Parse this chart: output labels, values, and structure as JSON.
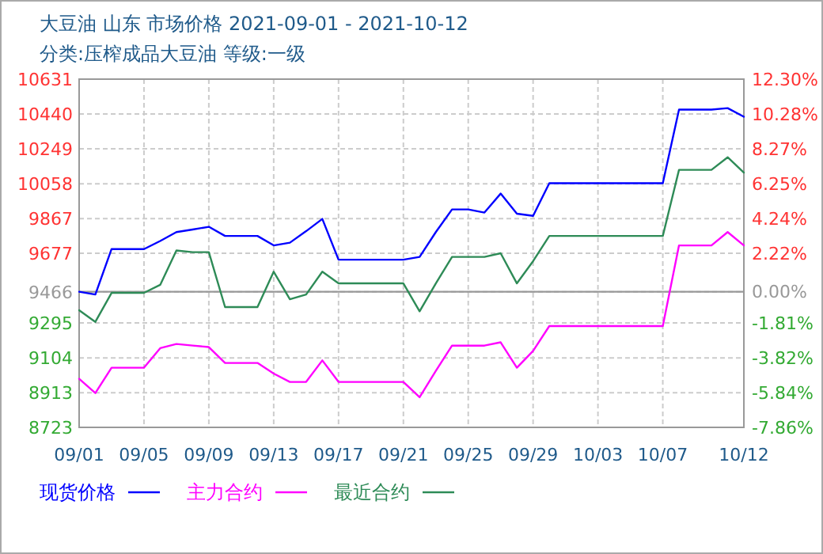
{
  "chart_data": {
    "type": "line",
    "title": "大豆油  山东  市场价格  2021-09-01 - 2021-10-12",
    "subtitle": "分类:压榨成品大豆油  等级:一级",
    "x": [
      "2021-09-01",
      "2021-09-02",
      "2021-09-03",
      "2021-09-04",
      "2021-09-05",
      "2021-09-06",
      "2021-09-07",
      "2021-09-08",
      "2021-09-09",
      "2021-09-10",
      "2021-09-11",
      "2021-09-12",
      "2021-09-13",
      "2021-09-14",
      "2021-09-15",
      "2021-09-16",
      "2021-09-17",
      "2021-09-18",
      "2021-09-19",
      "2021-09-20",
      "2021-09-21",
      "2021-09-22",
      "2021-09-23",
      "2021-09-24",
      "2021-09-25",
      "2021-09-26",
      "2021-09-27",
      "2021-09-28",
      "2021-09-29",
      "2021-09-30",
      "2021-10-01",
      "2021-10-02",
      "2021-10-03",
      "2021-10-04",
      "2021-10-05",
      "2021-10-06",
      "2021-10-07",
      "2021-10-08",
      "2021-10-09",
      "2021-10-10",
      "2021-10-11",
      "2021-10-12"
    ],
    "series": [
      {
        "name": "现货价格",
        "color": "#0000ff",
        "values": [
          9466,
          9451,
          9700,
          9700,
          9700,
          9744,
          9793,
          9807,
          9822,
          9772,
          9772,
          9772,
          9720,
          9735,
          9798,
          9865,
          9642,
          9642,
          9642,
          9642,
          9642,
          9657,
          9793,
          9917,
          9917,
          9900,
          10004,
          9894,
          9882,
          10061,
          10061,
          10061,
          10061,
          10061,
          10061,
          10061,
          10061,
          10464,
          10464,
          10464,
          10472,
          10425
        ]
      },
      {
        "name": "主力合约",
        "color": "#ff00ff",
        "values": [
          8989,
          8911,
          9050,
          9050,
          9050,
          9157,
          9180,
          9171,
          9163,
          9076,
          9076,
          9076,
          9018,
          8972,
          8972,
          9090,
          8972,
          8972,
          8972,
          8972,
          8972,
          8888,
          9032,
          9171,
          9171,
          9171,
          9189,
          9050,
          9142,
          9278,
          9278,
          9278,
          9278,
          9278,
          9278,
          9278,
          9278,
          9720,
          9720,
          9720,
          9793,
          9720
        ]
      },
      {
        "name": "最近合约",
        "color": "#2e8b57",
        "values": [
          9365,
          9301,
          9460,
          9460,
          9460,
          9504,
          9692,
          9683,
          9683,
          9382,
          9382,
          9382,
          9576,
          9425,
          9451,
          9576,
          9512,
          9512,
          9512,
          9512,
          9512,
          9359,
          9512,
          9657,
          9657,
          9657,
          9677,
          9512,
          9634,
          9772,
          9772,
          9772,
          9772,
          9772,
          9772,
          9772,
          9772,
          10134,
          10134,
          10134,
          10203,
          10119
        ]
      }
    ],
    "xlim": [
      "2021-09-01",
      "2021-10-12"
    ],
    "xticks": [
      {
        "value": "2021-09-01",
        "label": "09/01"
      },
      {
        "value": "2021-09-05",
        "label": "09/05"
      },
      {
        "value": "2021-09-09",
        "label": "09/09"
      },
      {
        "value": "2021-09-13",
        "label": "09/13"
      },
      {
        "value": "2021-09-17",
        "label": "09/17"
      },
      {
        "value": "2021-09-21",
        "label": "09/21"
      },
      {
        "value": "2021-09-25",
        "label": "09/25"
      },
      {
        "value": "2021-09-29",
        "label": "09/29"
      },
      {
        "value": "2021-10-03",
        "label": "10/03"
      },
      {
        "value": "2021-10-07",
        "label": "10/07"
      },
      {
        "value": "2021-10-12",
        "label": "10/12"
      }
    ],
    "ylim": [
      8723,
      10631
    ],
    "yticks": [
      8723,
      8913,
      9104,
      9295,
      9466,
      9677,
      9867,
      10058,
      10249,
      10440,
      10631
    ],
    "y2lim": [
      -7.86,
      12.3
    ],
    "y2ticks": [
      {
        "value": -7.86,
        "label": "-7.86%"
      },
      {
        "value": -5.84,
        "label": "-5.84%"
      },
      {
        "value": -3.82,
        "label": "-3.82%"
      },
      {
        "value": -1.81,
        "label": "-1.81%"
      },
      {
        "value": 0,
        "label": "0.00%"
      },
      {
        "value": 2.22,
        "label": "2.22%"
      },
      {
        "value": 4.24,
        "label": "4.24%"
      },
      {
        "value": 6.25,
        "label": "6.25%"
      },
      {
        "value": 8.27,
        "label": "8.27%"
      },
      {
        "value": 10.28,
        "label": "10.28%"
      },
      {
        "value": 12.3,
        "label": "12.30%"
      }
    ],
    "ref_lines": [
      {
        "axis": "y",
        "value": 9466,
        "color": "#999999"
      }
    ],
    "grid": true,
    "legend": "bottom"
  }
}
